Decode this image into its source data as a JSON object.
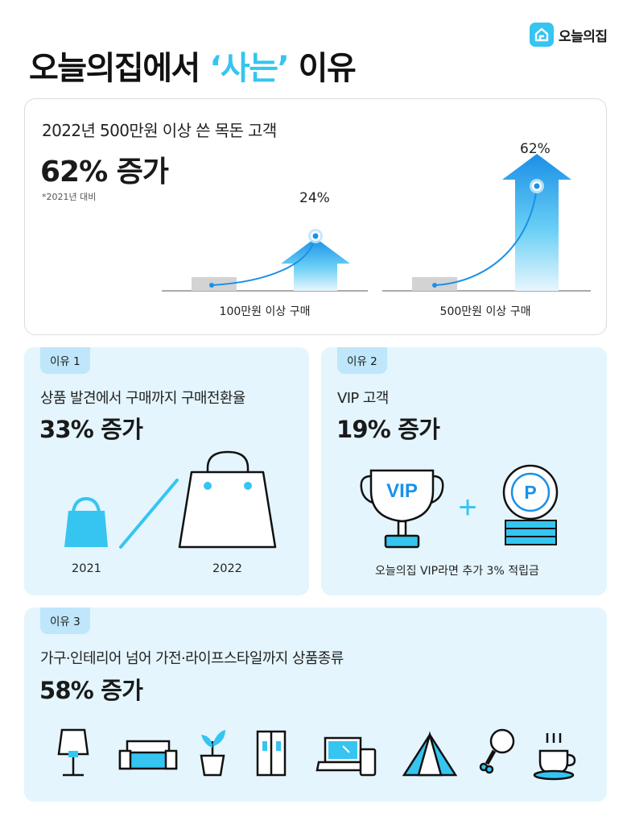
{
  "brand": {
    "name": "오늘의집"
  },
  "title": {
    "part1": "오늘의집에서 ",
    "highlight": "‘사는’",
    "part2": " 이유"
  },
  "summary": {
    "subtitle": "2022년 500만원 이상 쓴 목돈 고객",
    "headline": "62% 증가",
    "note": "*2021년 대비",
    "charts": [
      {
        "label": "100만원 이상 구매",
        "value_label": "24%",
        "increase_percent": 24
      },
      {
        "label": "500만원 이상 구매",
        "value_label": "62%",
        "increase_percent": 62
      }
    ]
  },
  "reason1": {
    "tag": "이유 1",
    "subtitle": "상품 발견에서 구매까지 구매전환율",
    "headline": "33% 증가",
    "years": [
      "2021",
      "2022"
    ]
  },
  "reason2": {
    "tag": "이유 2",
    "subtitle": "VIP 고객",
    "headline": "19% 증가",
    "trophy_text": "VIP",
    "plus": "+",
    "coin_text": "P",
    "caption": "오늘의집 VIP라면 추가 3% 적립금"
  },
  "reason3": {
    "tag": "이유 3",
    "subtitle": "가구·인테리어 넘어 가전·라이프스타일까지 상품종류",
    "headline": "58% 증가",
    "icons": [
      "lamp-icon",
      "sofa-icon",
      "plant-icon",
      "refrigerator-icon",
      "laptop-phone-icon",
      "tent-icon",
      "chicken-leg-icon",
      "coffee-cup-icon"
    ]
  },
  "colors": {
    "accent": "#35c5f0",
    "panel": "#e4f5fd",
    "tag": "#bfe6fa",
    "arrow_light": "#35c5f0",
    "arrow_dark": "#1a91e8"
  }
}
